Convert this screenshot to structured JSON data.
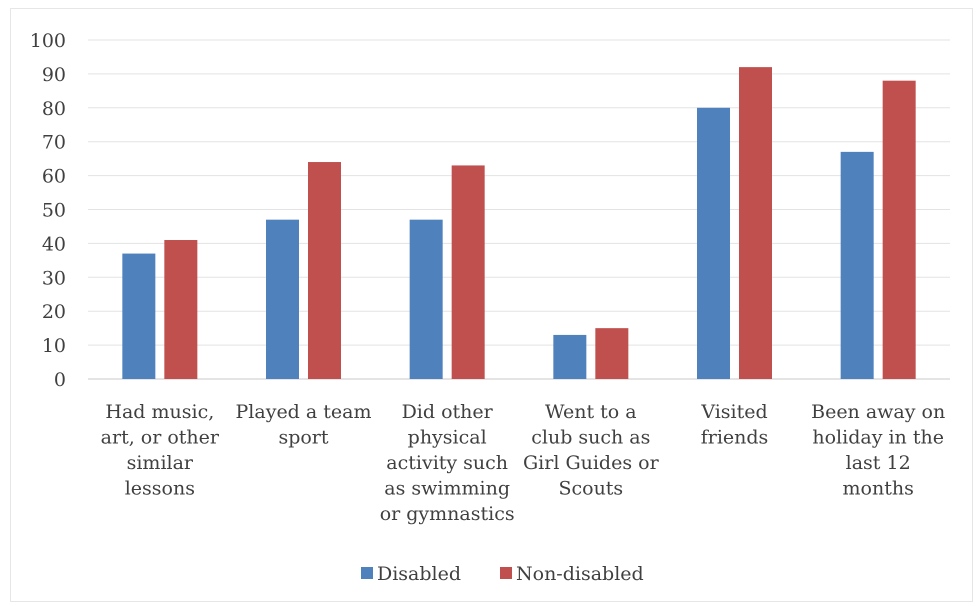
{
  "chart_data": {
    "type": "bar",
    "categories": [
      [
        "Had music,",
        "art, or other",
        "similar",
        "lessons"
      ],
      [
        "Played a team",
        "sport"
      ],
      [
        "Did other",
        "physical",
        "activity such",
        "as swimming",
        "or gymnastics"
      ],
      [
        "Went to a",
        "club such as",
        "Girl Guides or",
        "Scouts"
      ],
      [
        "Visited",
        "friends"
      ],
      [
        "Been away on",
        "holiday in the",
        "last 12",
        "months"
      ]
    ],
    "series": [
      {
        "name": "Disabled",
        "color": "#4f81bd",
        "values": [
          37,
          47,
          47,
          13,
          80,
          67
        ]
      },
      {
        "name": "Non-disabled",
        "color": "#c0504d",
        "values": [
          41,
          64,
          63,
          15,
          92,
          88
        ]
      }
    ],
    "ylim": [
      0,
      100
    ],
    "yticks": [
      "0",
      "10",
      "20",
      "30",
      "40",
      "50",
      "60",
      "70",
      "80",
      "90",
      "100"
    ],
    "grid": true,
    "legend": "bottom-center"
  }
}
